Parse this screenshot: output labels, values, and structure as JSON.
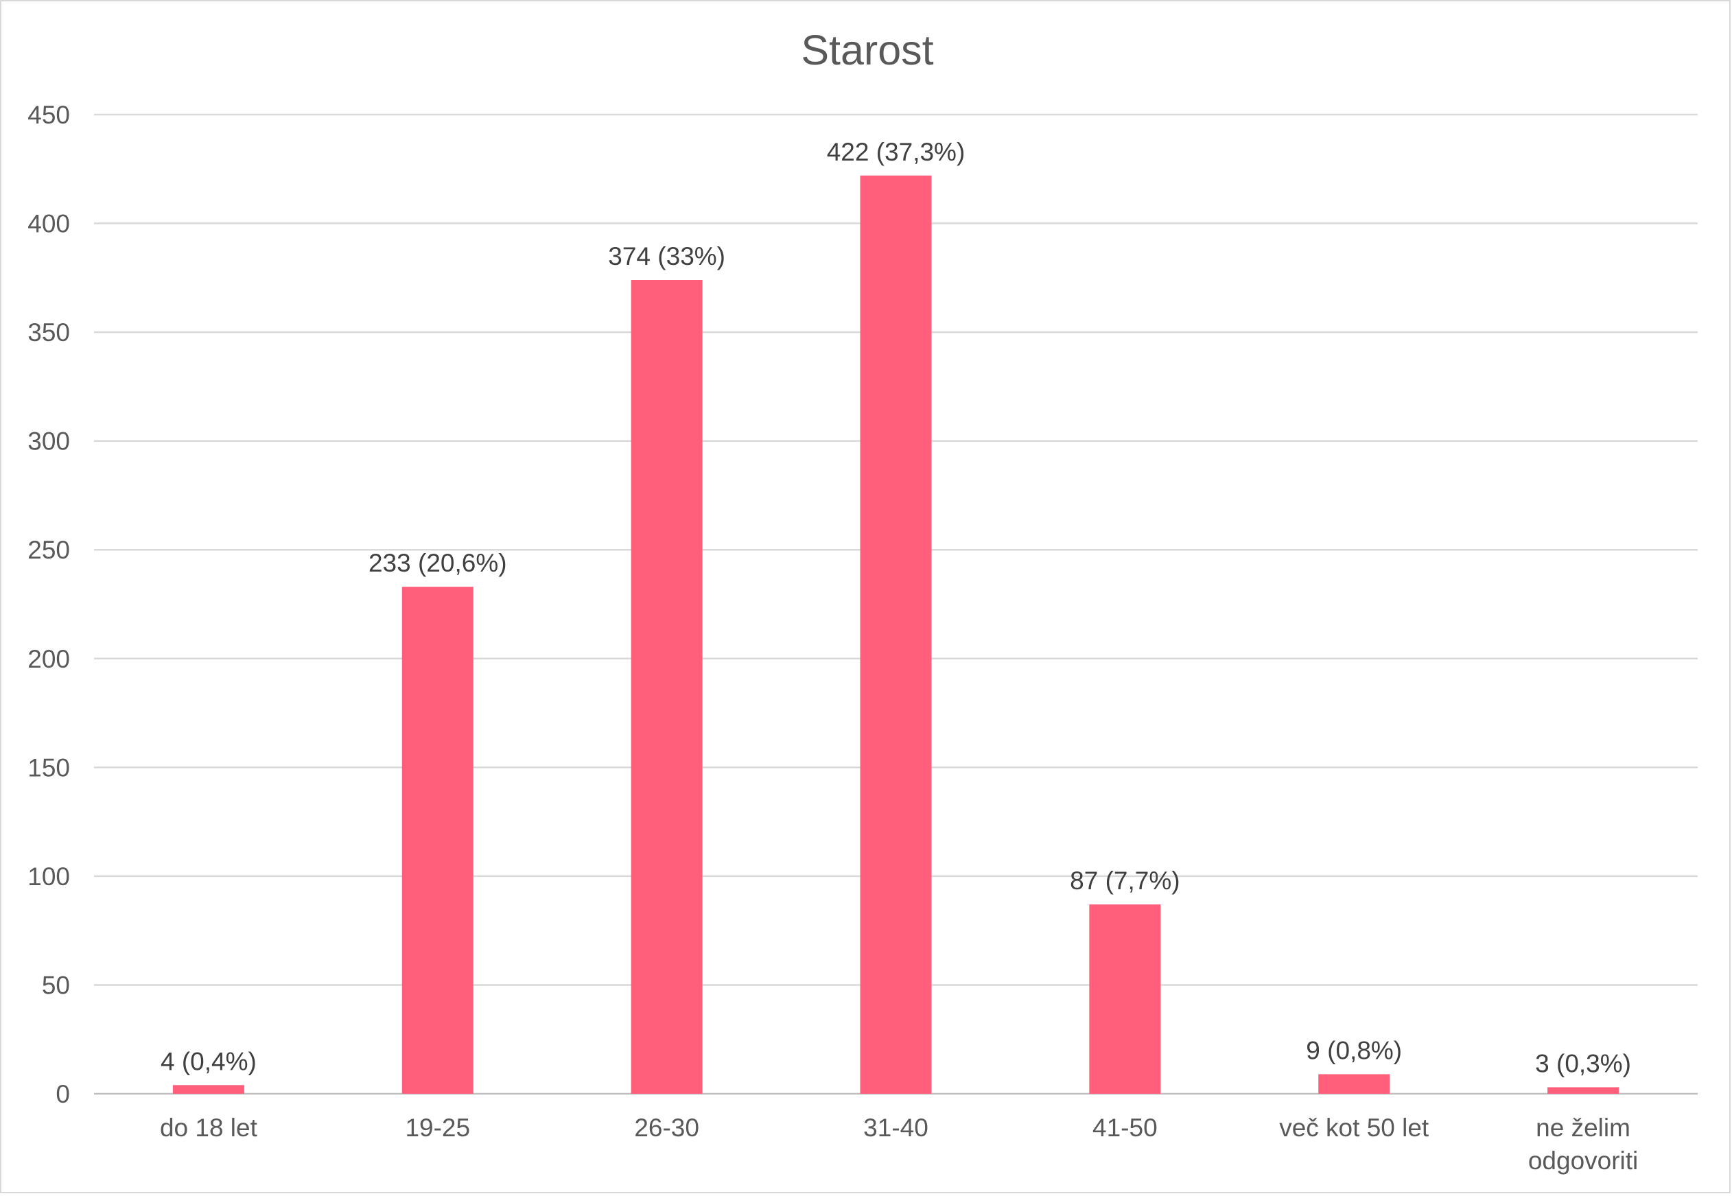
{
  "chart_data": {
    "type": "bar",
    "title": "Starost",
    "categories": [
      [
        "do 18 let"
      ],
      [
        "19-25"
      ],
      [
        "26-30"
      ],
      [
        "31-40"
      ],
      [
        "41-50"
      ],
      [
        "več kot 50 let"
      ],
      [
        "ne želim",
        "odgovoriti"
      ]
    ],
    "values": [
      4,
      233,
      374,
      422,
      87,
      9,
      3
    ],
    "data_labels": [
      "4 (0,4%)",
      "233 (20,6%)",
      "374 (33%)",
      "422 (37,3%)",
      "87 (7,7%)",
      "9 (0,8%)",
      "3 (0,3%)"
    ],
    "ylim": [
      0,
      450
    ],
    "yticks": [
      0,
      50,
      100,
      150,
      200,
      250,
      300,
      350,
      400,
      450
    ],
    "grid": true,
    "bar_color": "#ff5f7b",
    "legend": "none"
  }
}
